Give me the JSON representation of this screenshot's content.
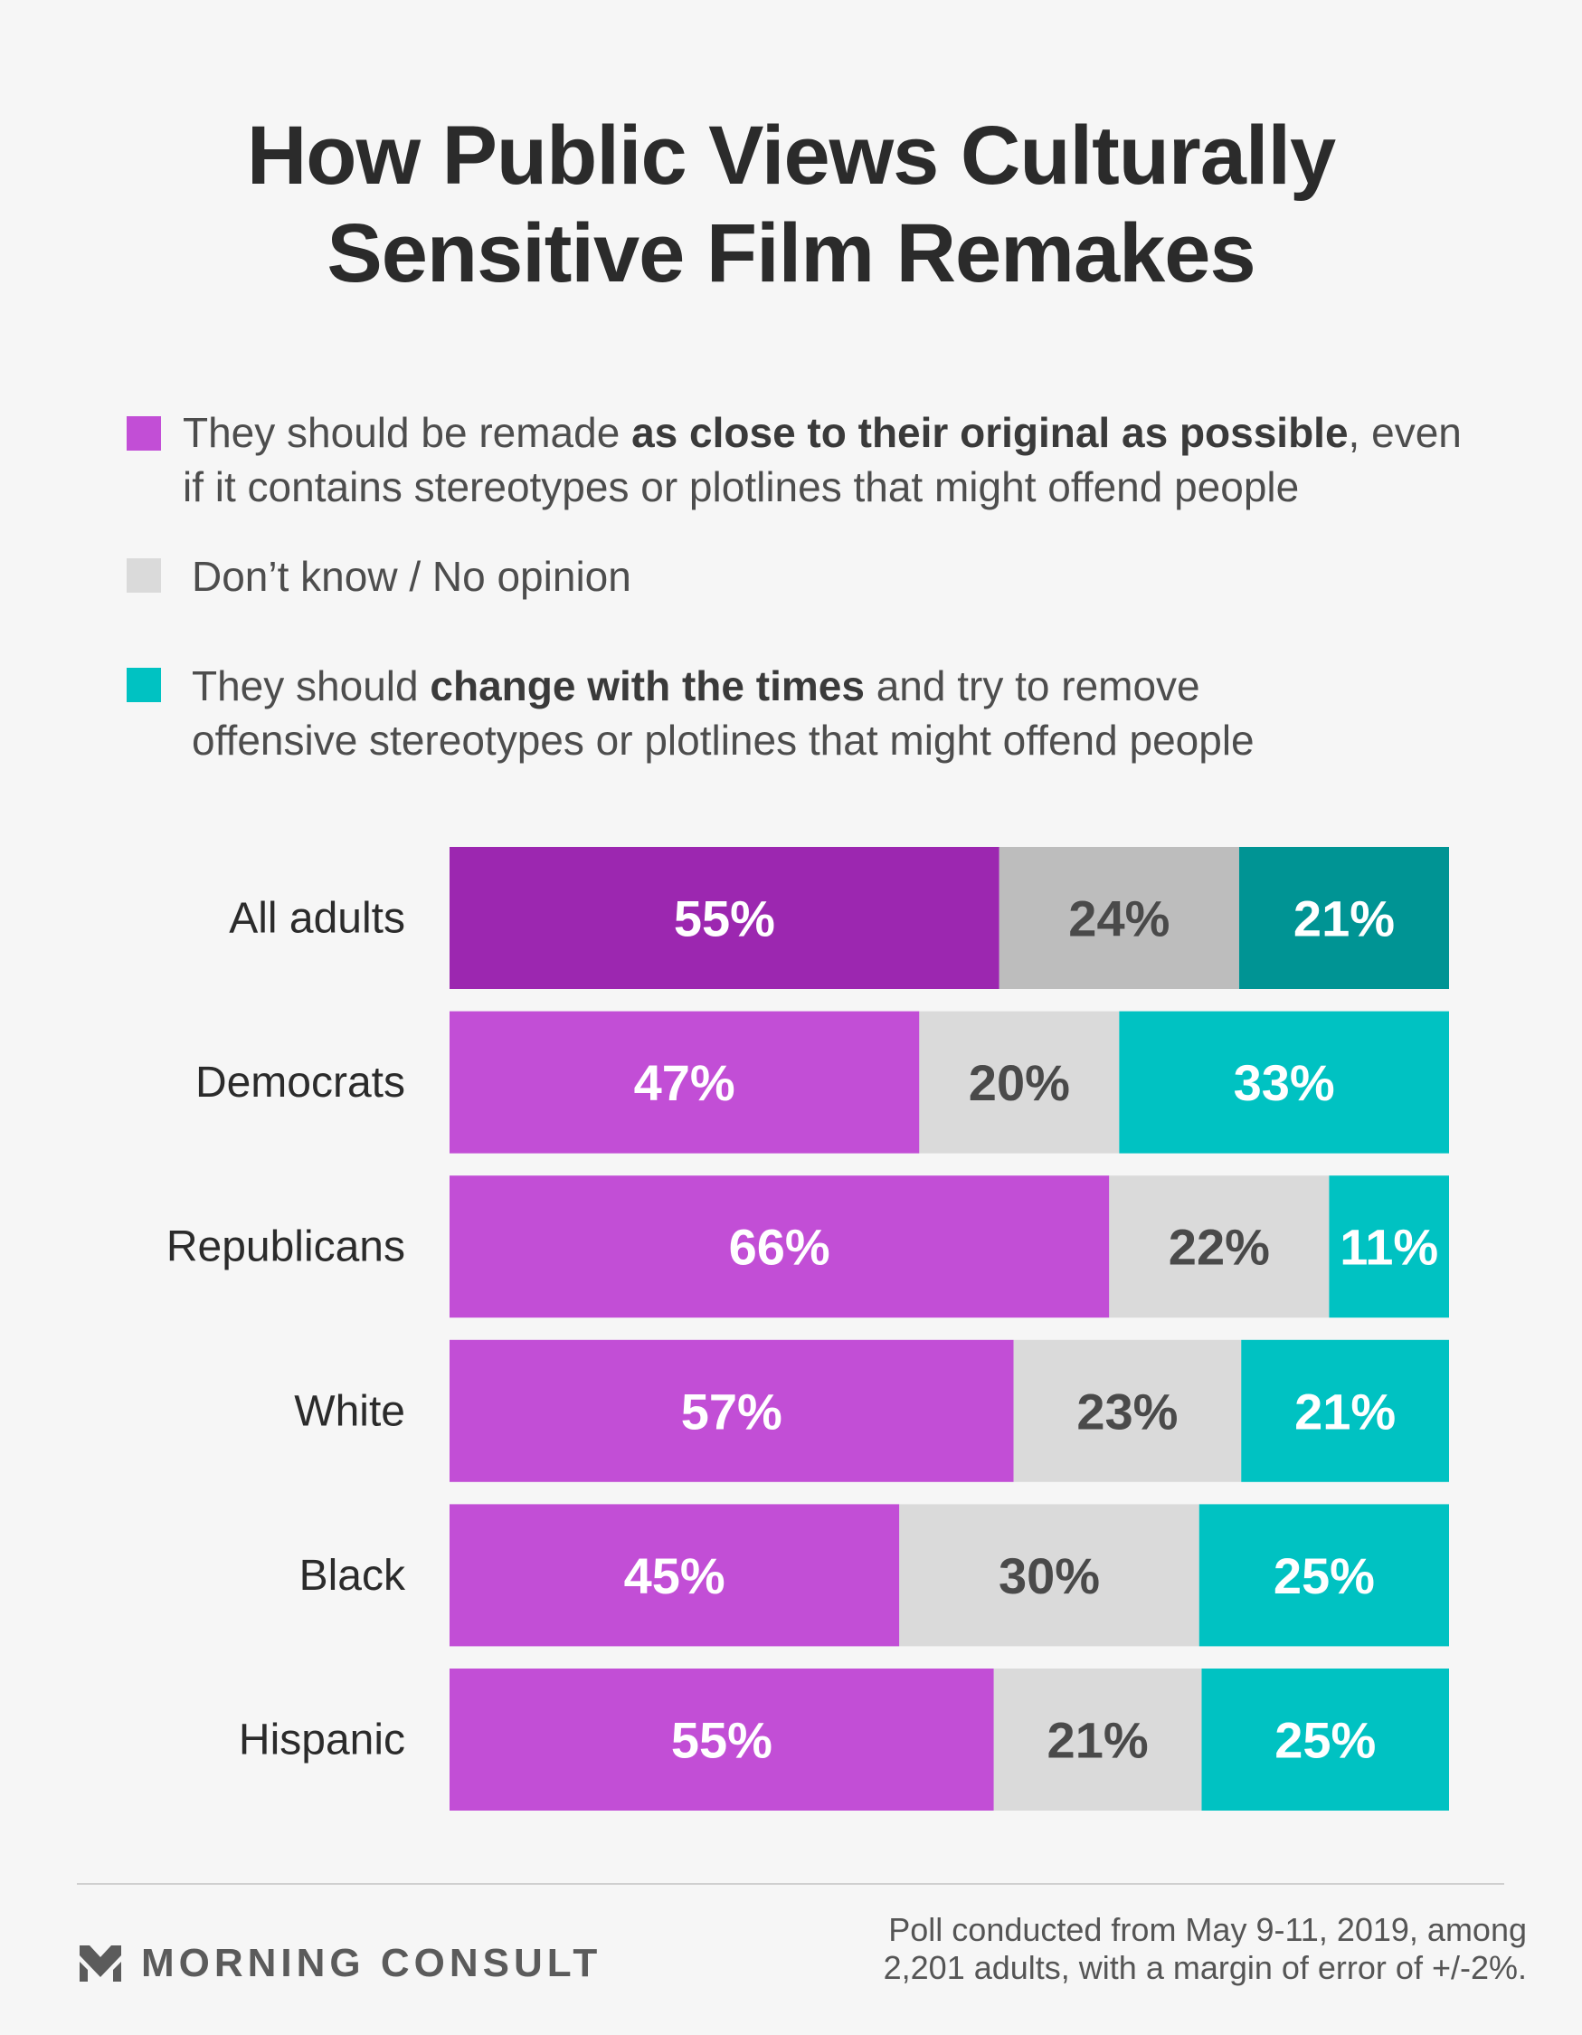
{
  "title": {
    "line1": "How Public Views Culturally",
    "line2": "Sensitive Film Remakes"
  },
  "legend": [
    {
      "color": "#c24ed6",
      "line1_pre": "They should be remade ",
      "line1_bold": "as close to their original as possible",
      "line1_post": ", even",
      "line2": "if it contains stereotypes or plotlines that might offend people"
    },
    {
      "color": "#dadada",
      "line1_pre": "Don’t know / No opinion",
      "line1_bold": "",
      "line1_post": "",
      "line2": ""
    },
    {
      "color": "#00c2c2",
      "line1_pre": "They should ",
      "line1_bold": "change with the times",
      "line1_post": " and try to remove",
      "line2": "offensive stereotypes or plotlines that might offend people"
    }
  ],
  "chart_data": {
    "type": "bar",
    "orientation": "horizontal",
    "stacked": true,
    "categories": [
      "All adults",
      "Democrats",
      "Republicans",
      "White",
      "Black",
      "Hispanic"
    ],
    "series": [
      {
        "name": "They should be remade as close to their original as possible, even if it contains stereotypes or plotlines that might offend people",
        "values": [
          55,
          47,
          66,
          57,
          45,
          55
        ],
        "color": "#c24ed6",
        "highlight_color": "#9c27b0",
        "label_color": "#ffffff"
      },
      {
        "name": "Don’t know / No opinion",
        "values": [
          24,
          20,
          22,
          23,
          30,
          21
        ],
        "color": "#dadada",
        "highlight_color": "#bdbdbd",
        "label_color": "#4a4a4a"
      },
      {
        "name": "They should change with the times and try to remove offensive stereotypes or plotlines that might offend people",
        "values": [
          21,
          33,
          11,
          21,
          25,
          25
        ],
        "color": "#00c2c2",
        "highlight_color": "#009494",
        "label_color": "#ffffff"
      }
    ],
    "data_labels": [
      [
        "55%",
        "24%",
        "21%"
      ],
      [
        "47%",
        "20%",
        "33%"
      ],
      [
        "66%",
        "22%",
        "11%"
      ],
      [
        "57%",
        "23%",
        "21%"
      ],
      [
        "45%",
        "30%",
        "25%"
      ],
      [
        "55%",
        "21%",
        "25%"
      ]
    ],
    "highlighted_category": "All adults",
    "xlim": [
      0,
      100
    ],
    "legend_position": "top"
  },
  "footer": {
    "brand": "MORNING CONSULT",
    "note_line1": "Poll conducted from May 9-11, 2019, among",
    "note_line2": "2,201 adults, with a margin of error of +/-2%."
  }
}
